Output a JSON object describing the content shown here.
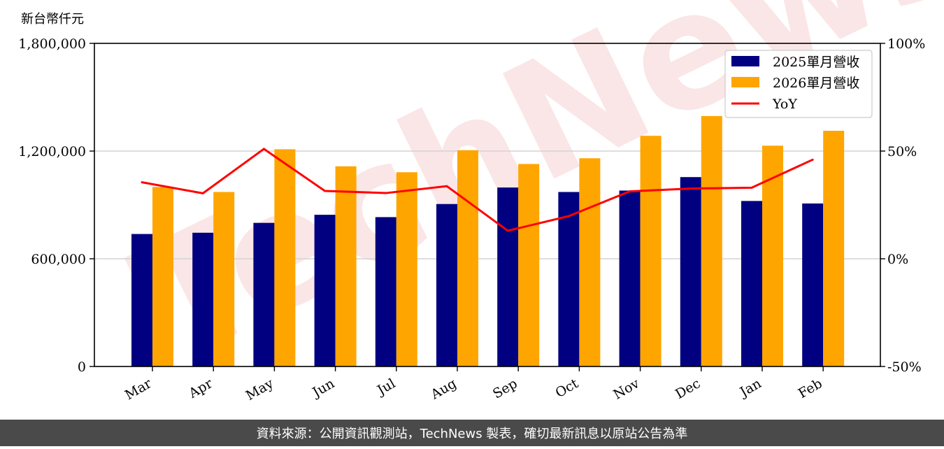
{
  "unit_label": "新台幣仟元",
  "watermark": "TechNews",
  "footer": "資料來源：公開資訊觀測站，TechNews 製表，確切最新訊息以原站公告為準",
  "colors": {
    "series_2025": "#000080",
    "series_2026": "#ffa500",
    "yoy": "#ff0000",
    "footer_bg": "#4a4a4a"
  },
  "chart_data": {
    "type": "bar",
    "categories": [
      "Mar",
      "Apr",
      "May",
      "Jun",
      "Jul",
      "Aug",
      "Sep",
      "Oct",
      "Nov",
      "Dec",
      "Jan",
      "Feb"
    ],
    "series": [
      {
        "name": "2025單月營收",
        "type": "bar",
        "axis": "left",
        "values": [
          738000,
          745000,
          800000,
          845000,
          832000,
          905000,
          997000,
          972000,
          980000,
          1055000,
          922000,
          908000
        ]
      },
      {
        "name": "2026單月營收",
        "type": "bar",
        "axis": "left",
        "values": [
          1000000,
          972000,
          1210000,
          1115000,
          1082000,
          1205000,
          1128000,
          1160000,
          1285000,
          1395000,
          1230000,
          1313000
        ]
      },
      {
        "name": "YoY",
        "type": "line",
        "axis": "right",
        "values": [
          35.5,
          30.4,
          51.0,
          31.5,
          30.5,
          33.7,
          13.0,
          19.8,
          31.3,
          32.6,
          33.0,
          46.0
        ]
      }
    ],
    "y_left": {
      "ticks": [
        0,
        600000,
        1200000,
        1800000
      ],
      "tick_labels": [
        "0",
        "600,000",
        "1,200,000",
        "1,800,000"
      ],
      "lim": [
        0,
        1800000
      ]
    },
    "y_right": {
      "ticks": [
        -50,
        0,
        50,
        100
      ],
      "tick_labels": [
        "-50%",
        "0%",
        "50%",
        "100%"
      ],
      "lim": [
        -50,
        100
      ]
    },
    "grid": "horizontal",
    "legend": "top-right"
  }
}
